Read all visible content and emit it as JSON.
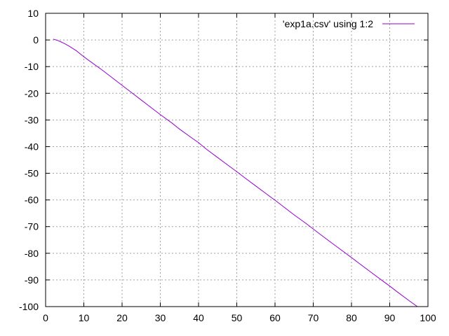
{
  "chart_data": {
    "type": "line",
    "title": "",
    "xlabel": "",
    "ylabel": "",
    "xlim": [
      0,
      100
    ],
    "ylim": [
      -100,
      10
    ],
    "x_ticks": [
      "0",
      "10",
      "20",
      "30",
      "40",
      "50",
      "60",
      "70",
      "80",
      "90",
      "100"
    ],
    "y_ticks": [
      "10",
      "0",
      "-10",
      "-20",
      "-30",
      "-40",
      "-50",
      "-60",
      "-70",
      "-80",
      "-90",
      "-100"
    ],
    "grid": true,
    "legend_position": "top-right",
    "series": [
      {
        "name": "'exp1a.csv' using 1:2",
        "color": "#9400d3",
        "x": [
          2,
          3,
          4,
          5,
          6,
          8,
          10,
          12,
          15,
          18,
          20,
          22,
          25,
          28,
          30,
          33,
          35,
          38,
          40,
          42,
          45,
          48,
          50,
          52,
          55,
          58,
          60,
          62,
          65,
          68,
          70,
          72,
          75,
          78,
          80,
          82,
          85,
          88,
          90,
          92,
          95,
          98,
          100
        ],
        "y": [
          0.3,
          -0.1,
          -0.7,
          -1.4,
          -2.2,
          -4.0,
          -6.3,
          -8.4,
          -11.5,
          -14.8,
          -17.0,
          -19.2,
          -22.5,
          -25.8,
          -28.0,
          -31.1,
          -33.4,
          -36.5,
          -38.5,
          -40.9,
          -44.1,
          -47.3,
          -49.4,
          -51.6,
          -54.8,
          -58.0,
          -60.1,
          -62.3,
          -65.6,
          -68.7,
          -70.9,
          -73.1,
          -76.3,
          -79.5,
          -81.6,
          -83.8,
          -87.0,
          -90.2,
          -92.3,
          -94.5,
          -97.7,
          -100.8,
          -102.8
        ]
      }
    ]
  }
}
